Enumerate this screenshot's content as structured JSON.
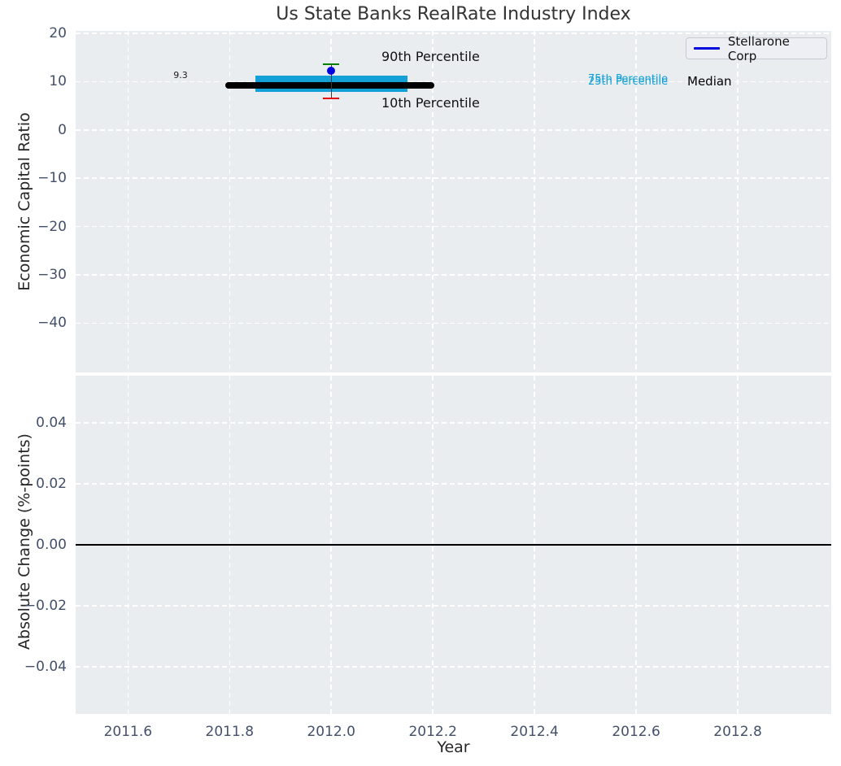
{
  "colors": {
    "axes_background": "#e9edf0",
    "grid": "#ffffff",
    "tick": "#44506a",
    "iqr_band": "#12a0d6",
    "median_line": "#000000",
    "p90_cap": "#007f00",
    "p10_cap": "#e80000",
    "company_point": "#0303dd",
    "zero_line": "#000000"
  },
  "chart_data": [
    {
      "type": "box",
      "title": "Us State Banks RealRate Industry Index",
      "ylabel": "Economic Capital Ratio",
      "xlabel": "",
      "grid": true,
      "xlim": [
        2011.497,
        2012.984
      ],
      "ylim": [
        -50.2,
        20.5
      ],
      "xtick_values": [
        2011.6,
        2011.8,
        2012.0,
        2012.2,
        2012.4,
        2012.6,
        2012.8
      ],
      "xtick_labels": [
        "2011.6",
        "2011.8",
        "2012.0",
        "2012.2",
        "2012.4",
        "2012.6",
        "2012.8"
      ],
      "ytick_values": [
        20,
        10,
        0,
        -10,
        -20,
        -30,
        -40
      ],
      "ytick_labels": [
        "20",
        "10",
        "0",
        "−10",
        "−20",
        "−30",
        "−40"
      ],
      "x": 2012.0,
      "box": {
        "median": 9.3,
        "p25": 7.8,
        "p75": 11.3,
        "p10": 6.5,
        "p90": 13.6,
        "median_x_span": [
          2011.792,
          2012.203
        ],
        "iqr_x_span": [
          2011.85,
          2012.15
        ]
      },
      "company_point": {
        "name": "Stellarone Corp",
        "x": 2012.0,
        "y": 12.2
      },
      "legend": {
        "label": "Stellarone Corp",
        "position": "upper right"
      },
      "annotations": {
        "p90": "90th Percentile",
        "p10": "10th Percentile",
        "p75": "75th Percentile",
        "p25": "25th Percentile",
        "median": "Median",
        "median_value": "9.3"
      }
    },
    {
      "type": "line",
      "title": "",
      "ylabel": "Absolute Change (%-points)",
      "xlabel": "Year",
      "grid": true,
      "xlim": [
        2011.497,
        2012.984
      ],
      "ylim": [
        -0.0555,
        0.0555
      ],
      "xtick_values": [
        2011.6,
        2011.8,
        2012.0,
        2012.2,
        2012.4,
        2012.6,
        2012.8
      ],
      "xtick_labels": [
        "2011.6",
        "2011.8",
        "2012.0",
        "2012.2",
        "2012.4",
        "2012.6",
        "2012.8"
      ],
      "ytick_values": [
        0.04,
        0.02,
        0.0,
        -0.02,
        -0.04
      ],
      "ytick_labels": [
        "0.04",
        "0.02",
        "0.00",
        "−0.02",
        "−0.04"
      ],
      "zero_line": 0.0
    }
  ]
}
